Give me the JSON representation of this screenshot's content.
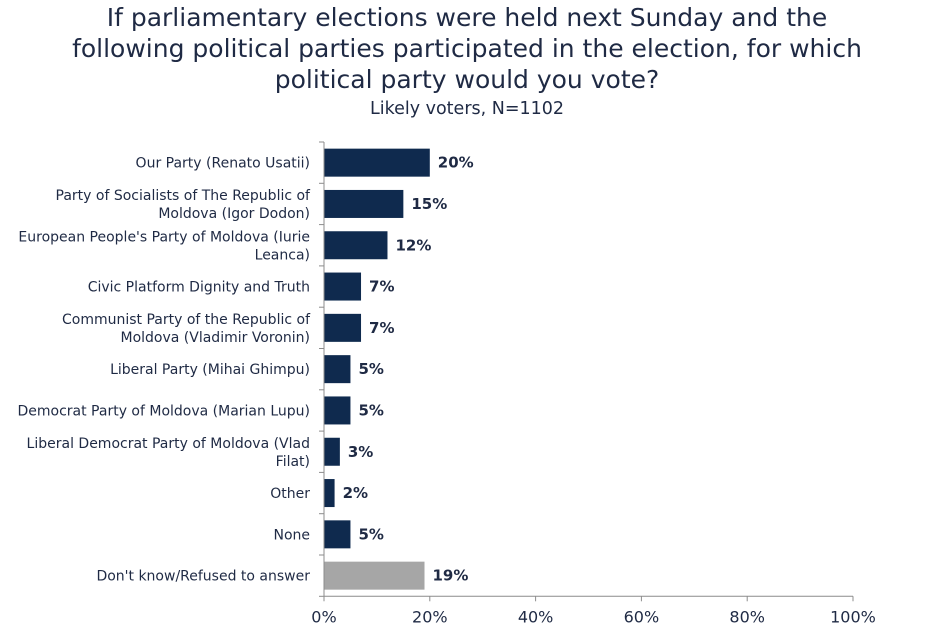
{
  "chart_data": {
    "type": "bar",
    "orientation": "horizontal",
    "title_lines": [
      "If parliamentary elections were held next Sunday and the",
      "following political parties participated in the election, for which",
      "political party would you vote?"
    ],
    "subtitle": "Likely voters, N=1102",
    "categories": [
      [
        "Our Party (Renato Usatii)"
      ],
      [
        "Party of Socialists of The Republic of",
        "Moldova (Igor Dodon)"
      ],
      [
        "European People's Party of Moldova (Iurie",
        "Leanca)"
      ],
      [
        "Civic Platform Dignity and Truth"
      ],
      [
        "Communist Party of the Republic of",
        "Moldova (Vladimir Voronin)"
      ],
      [
        "Liberal Party (Mihai Ghimpu)"
      ],
      [
        "Democrat Party of Moldova (Marian Lupu)"
      ],
      [
        "Liberal Democrat Party of Moldova (Vlad",
        "Filat)"
      ],
      [
        "Other"
      ],
      [
        "None"
      ],
      [
        "Don't know/Refused to answer"
      ]
    ],
    "values": [
      20,
      15,
      12,
      7,
      7,
      5,
      5,
      3,
      2,
      5,
      19
    ],
    "value_labels": [
      "20%",
      "15%",
      "12%",
      "7%",
      "7%",
      "5%",
      "5%",
      "3%",
      "2%",
      "5%",
      "19%"
    ],
    "bar_colors": [
      "#0f2a4e",
      "#0f2a4e",
      "#0f2a4e",
      "#0f2a4e",
      "#0f2a4e",
      "#0f2a4e",
      "#0f2a4e",
      "#0f2a4e",
      "#0f2a4e",
      "#0f2a4e",
      "#a6a6a6"
    ],
    "xlim": [
      0,
      100
    ],
    "xticks": [
      0,
      20,
      40,
      60,
      80,
      100
    ],
    "xtick_labels": [
      "0%",
      "20%",
      "40%",
      "60%",
      "80%",
      "100%"
    ],
    "grid": false,
    "legend": "none",
    "xlabel": "",
    "ylabel": ""
  }
}
